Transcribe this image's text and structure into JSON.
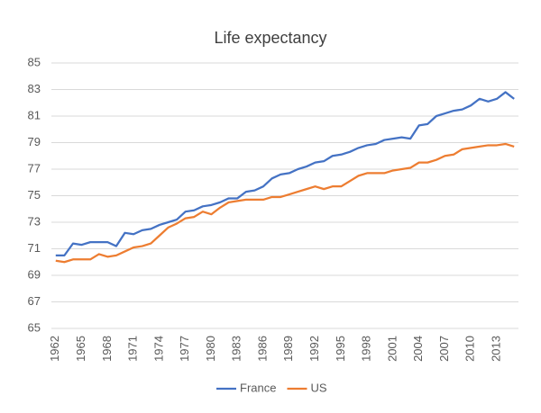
{
  "chart_data": {
    "type": "line",
    "title": "Life expectancy",
    "categories": [
      "1962",
      null,
      null,
      "1965",
      null,
      null,
      "1968",
      null,
      null,
      "1971",
      null,
      null,
      "1974",
      null,
      null,
      "1977",
      null,
      null,
      "1980",
      null,
      null,
      "1983",
      null,
      null,
      "1986",
      null,
      null,
      "1989",
      null,
      null,
      "1992",
      null,
      null,
      "1995",
      null,
      null,
      "1998",
      null,
      null,
      "2001",
      null,
      null,
      "2004",
      null,
      null,
      "2007",
      null,
      null,
      "2010",
      null,
      null,
      "2013",
      null,
      null
    ],
    "series": [
      {
        "name": "France",
        "color": "#4472c4",
        "values": [
          70.5,
          70.5,
          71.4,
          71.3,
          71.5,
          71.5,
          71.5,
          71.2,
          72.2,
          72.1,
          72.4,
          72.5,
          72.8,
          73.0,
          73.2,
          73.8,
          73.9,
          74.2,
          74.3,
          74.5,
          74.8,
          74.8,
          75.3,
          75.4,
          75.7,
          76.3,
          76.6,
          76.7,
          77.0,
          77.2,
          77.5,
          77.6,
          78.0,
          78.1,
          78.3,
          78.6,
          78.8,
          78.9,
          79.2,
          79.3,
          79.4,
          79.3,
          80.3,
          80.4,
          81.0,
          81.2,
          81.4,
          81.5,
          81.8,
          82.3,
          82.1,
          82.3,
          82.8,
          82.3
        ]
      },
      {
        "name": "US",
        "color": "#ed7d31",
        "values": [
          70.1,
          70.0,
          70.2,
          70.2,
          70.2,
          70.6,
          70.4,
          70.5,
          70.8,
          71.1,
          71.2,
          71.4,
          72.0,
          72.6,
          72.9,
          73.3,
          73.4,
          73.8,
          73.6,
          74.1,
          74.5,
          74.6,
          74.7,
          74.7,
          74.7,
          74.9,
          74.9,
          75.1,
          75.3,
          75.5,
          75.7,
          75.5,
          75.7,
          75.7,
          76.1,
          76.5,
          76.7,
          76.7,
          76.7,
          76.9,
          77.0,
          77.1,
          77.5,
          77.5,
          77.7,
          78.0,
          78.1,
          78.5,
          78.6,
          78.7,
          78.8,
          78.8,
          78.9,
          78.7
        ]
      }
    ],
    "ylim": [
      65,
      85
    ],
    "yticks": [
      65,
      67,
      69,
      71,
      73,
      75,
      77,
      79,
      81,
      83,
      85
    ],
    "grid": true,
    "legend": "bottom"
  }
}
